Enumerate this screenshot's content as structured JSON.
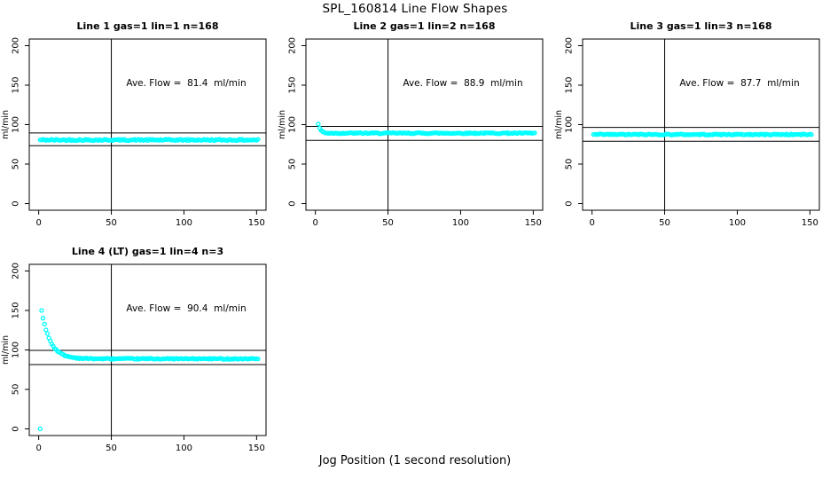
{
  "page": {
    "main_title": "SPL_160814  Line Flow Shapes",
    "shared_x_label": "Jog Position (1 second resolution)",
    "background_color": "#ffffff"
  },
  "chart_data": {
    "type": "scatter",
    "title": "SPL_160814  Line Flow Shapes",
    "xlabel": "Jog Position (1 second resolution)",
    "ylabel": "ml/min",
    "point_color": "#00ffff",
    "axis_color": "#000000",
    "x_ticks": [
      0,
      50,
      100,
      150
    ],
    "y_ticks": [
      0,
      50,
      100,
      150,
      200
    ],
    "xlim": [
      -6.5,
      156.5
    ],
    "ylim": [
      -8.4,
      208.4
    ],
    "grid": false,
    "marker": "open-circle",
    "jitter_seed": 42,
    "plots": [
      {
        "title": "Line 1 gas=1 lin=1 n=168",
        "annotation": "Ave. Flow =  81.4  ml/min",
        "ave_flow_ml_min": 81.4,
        "gas": 1,
        "lin": 1,
        "n": 168,
        "ylabel": "ml/min",
        "ref_lines_y": [
          89.5,
          73.3
        ],
        "vline_x": 50,
        "points_spec": [
          {
            "type": "flat",
            "x_start": 1,
            "x_end": 151,
            "y": 80.6,
            "jitter": 0.9
          }
        ]
      },
      {
        "title": "Line 2 gas=1 lin=2 n=168",
        "annotation": "Ave. Flow =  88.9  ml/min",
        "ave_flow_ml_min": 88.9,
        "gas": 1,
        "lin": 2,
        "n": 168,
        "ylabel": "ml/min",
        "ref_lines_y": [
          97.8,
          80.0
        ],
        "vline_x": 50,
        "points_spec": [
          {
            "type": "decay",
            "x_start": 2,
            "x_end": 151,
            "y_start": 101,
            "y_settle": 89.2,
            "tau": 1.6,
            "jitter": 0.7
          }
        ]
      },
      {
        "title": "Line 3 gas=1 lin=3 n=168",
        "annotation": "Ave. Flow =  87.7  ml/min",
        "ave_flow_ml_min": 87.7,
        "gas": 1,
        "lin": 3,
        "n": 168,
        "ylabel": "ml/min",
        "ref_lines_y": [
          96.5,
          78.9
        ],
        "vline_x": 50,
        "points_spec": [
          {
            "type": "flat",
            "x_start": 1,
            "x_end": 151,
            "y": 87.5,
            "jitter": 0.7
          }
        ]
      },
      {
        "title": "Line 4 (LT) gas=1 lin=4 n=3",
        "annotation": "Ave. Flow =  90.4  ml/min",
        "ave_flow_ml_min": 90.4,
        "gas": 1,
        "lin": 4,
        "n": 3,
        "ylabel": "ml/min",
        "ref_lines_y": [
          99.4,
          81.4
        ],
        "vline_x": 50,
        "points_spec": [
          {
            "type": "single",
            "x": 1,
            "y": 0
          },
          {
            "type": "decay",
            "x_start": 2,
            "x_end": 151,
            "y_start": 150,
            "y_settle": 88.8,
            "tau": 6,
            "jitter": 0.7
          }
        ]
      }
    ]
  }
}
